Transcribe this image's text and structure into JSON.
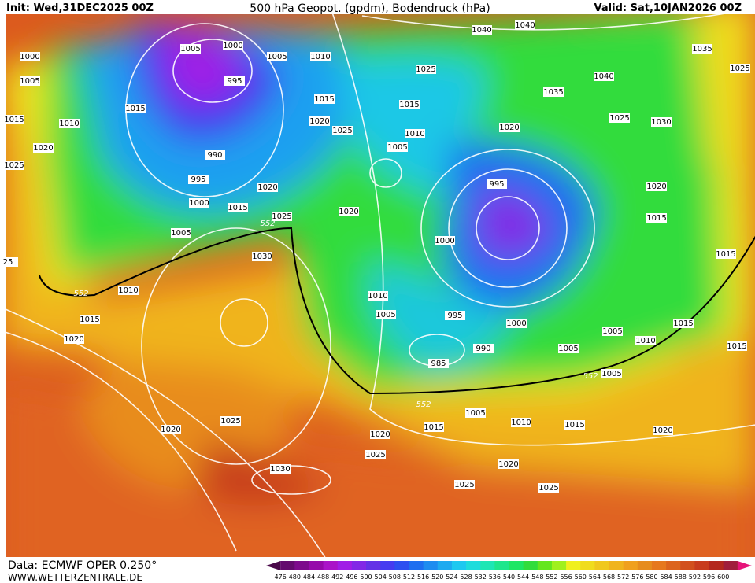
{
  "header": {
    "init": "Init: Wed,31DEC2025 00Z",
    "title": "500 hPa Geopot. (gpdm), Bodendruck (hPa)",
    "valid": "Valid: Sat,10JAN2026 00Z"
  },
  "footer": {
    "source": "Data: ECMWF OPER 0.250°",
    "site": "WWW.WETTERZENTRALE.DE"
  },
  "isobar_labels": [
    "1000",
    "1005",
    "1015",
    "1010",
    "1020",
    "1025",
    "1015",
    "1005",
    "1000",
    "995",
    "990",
    "995",
    "1000",
    "1005",
    "1015",
    "1020",
    "1025",
    "1030",
    "1005",
    "1010",
    "1015",
    "1020",
    "1025",
    "1040",
    "1040",
    "1035",
    "1025",
    "1015",
    "1010",
    "1005",
    "1035",
    "1040",
    "1025",
    "1030",
    "1020",
    "995",
    "1020",
    "1015",
    "1015",
    "1020",
    "1000",
    "1010",
    "1015",
    "1020",
    "1010",
    "1005",
    "995",
    "990",
    "985",
    "1000",
    "1005",
    "1005",
    "1010",
    "1015",
    "1015",
    "1005",
    "1005",
    "1010",
    "1015",
    "1015",
    "1020",
    "1025",
    "1020",
    "1020",
    "1025",
    "1025",
    "1020",
    "1025",
    "1030",
    "1025",
    "25"
  ],
  "contour_labels": [
    "552",
    "552",
    "552",
    "552"
  ],
  "colorbar": {
    "labels": [
      476,
      480,
      484,
      488,
      492,
      496,
      500,
      504,
      508,
      512,
      516,
      520,
      524,
      528,
      532,
      536,
      540,
      544,
      548,
      552,
      556,
      560,
      564,
      568,
      572,
      576,
      580,
      584,
      588,
      592,
      596,
      600
    ],
    "colors": [
      "#4a0a4a",
      "#640a6e",
      "#7d0a8c",
      "#960aaa",
      "#aa14c8",
      "#a01ee6",
      "#8228e6",
      "#6432e6",
      "#463cf0",
      "#2d50f0",
      "#1e6ef0",
      "#1e8cf0",
      "#1eaaf0",
      "#1ec8f0",
      "#1edcdc",
      "#1ee6b4",
      "#1ee68c",
      "#1ee664",
      "#32dc3c",
      "#64e61e",
      "#a0f01e",
      "#f0f01e",
      "#f0dc1e",
      "#f0c81e",
      "#f0b41e",
      "#f0a01e",
      "#e68c1e",
      "#e6781e",
      "#dc641e",
      "#d2501e",
      "#c83c1e",
      "#b4281e",
      "#a01e3c",
      "#e6147a"
    ]
  }
}
